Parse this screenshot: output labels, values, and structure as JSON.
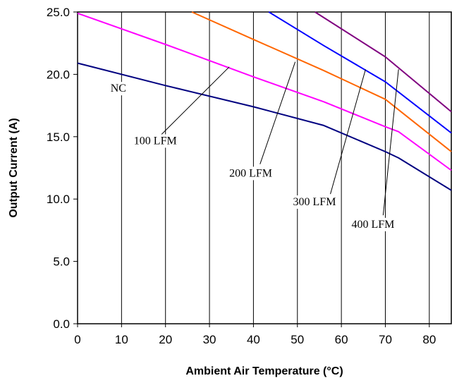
{
  "chart_data": {
    "type": "line",
    "xlabel": "Ambient Air Temperature (°C)",
    "ylabel": "Output Current (A)",
    "xlim": [
      0,
      85
    ],
    "ylim": [
      0,
      25
    ],
    "xticks": [
      "0",
      "10",
      "20",
      "30",
      "40",
      "50",
      "60",
      "70",
      "80"
    ],
    "yticks": [
      "0.0",
      "5.0",
      "10.0",
      "15.0",
      "20.0",
      "25.0"
    ],
    "grid": "vertical",
    "series": [
      {
        "name": "NC",
        "color": "#000080",
        "x": [
          0,
          20,
          40,
          56,
          70,
          73,
          85
        ],
        "y": [
          20.9,
          19.1,
          17.4,
          15.9,
          13.8,
          13.3,
          10.7
        ]
      },
      {
        "name": "100 LFM",
        "color": "#ff00ff",
        "x": [
          0,
          20,
          40,
          56,
          70,
          73,
          85
        ],
        "y": [
          24.9,
          22.4,
          19.8,
          17.8,
          15.8,
          15.4,
          12.3
        ]
      },
      {
        "name": "200 LFM",
        "color": "#ff6600",
        "x": [
          26,
          40,
          56,
          70,
          85
        ],
        "y": [
          25.0,
          22.8,
          20.3,
          18.0,
          13.8
        ]
      },
      {
        "name": "300 LFM",
        "color": "#0000ff",
        "x": [
          43.5,
          56,
          70,
          85
        ],
        "y": [
          25.0,
          22.3,
          19.4,
          15.3
        ]
      },
      {
        "name": "400 LFM",
        "color": "#800080",
        "x": [
          54,
          70,
          85
        ],
        "y": [
          25.0,
          21.4,
          17.0
        ]
      }
    ],
    "annotations": [
      {
        "text": "NC",
        "x": 7.5,
        "y": 18.6,
        "line": null
      },
      {
        "text": "100 LFM",
        "x": 12.8,
        "y": 14.4,
        "line": {
          "x1": 18,
          "y1": 14.8,
          "x2": 34.5,
          "y2": 20.6
        }
      },
      {
        "text": "200 LFM",
        "x": 34.5,
        "y": 11.8,
        "line": {
          "x1": 41.5,
          "y1": 12.8,
          "x2": 49.5,
          "y2": 21.0
        }
      },
      {
        "text": "300 LFM",
        "x": 49,
        "y": 9.5,
        "line": {
          "x1": 57.5,
          "y1": 10.4,
          "x2": 65.5,
          "y2": 20.4
        }
      },
      {
        "text": "400 LFM",
        "x": 62.3,
        "y": 7.7,
        "line": {
          "x1": 69.5,
          "y1": 8.7,
          "x2": 73,
          "y2": 20.4
        }
      }
    ]
  }
}
